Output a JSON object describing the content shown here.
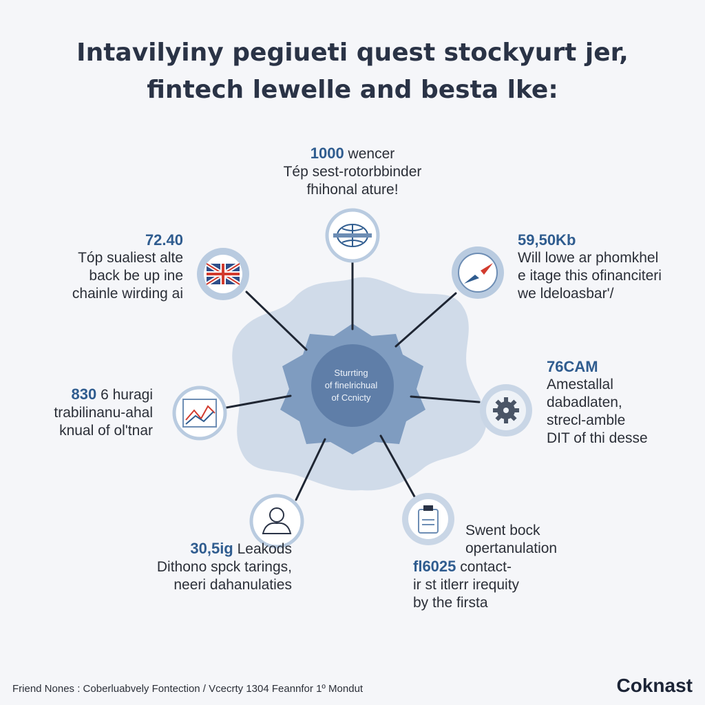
{
  "title": {
    "line1": "Intavilyiny pegiueti quest stockyurt jer,",
    "line2": "fintech lewelle and besta lke:"
  },
  "hub": {
    "lines": [
      "Sturrting",
      "of finelrichual",
      "of Ccnicty"
    ]
  },
  "nodes": [
    {
      "icon": "globe-icon",
      "number": "1000",
      "lines": [
        "wencer",
        "Tép sest-rotorbbinder",
        "fhihonal ature!"
      ]
    },
    {
      "icon": "compass-icon",
      "number": "59,50Kb",
      "lines": [
        "Will lowe ar phomkhel",
        "e itage this ofinanciteri",
        "we ldeloasbar'/"
      ]
    },
    {
      "icon": "gear-icon",
      "number": "76CAM",
      "lines": [
        "Amestallal",
        "dabadlaten,",
        "strecl-amble",
        "DIT of thi desse"
      ]
    },
    {
      "icon": "document-icon",
      "number": "fl6025",
      "lines": [
        "Swent bock",
        "opertanulation",
        "contact-",
        "ir st itlerr irequity",
        "by the firsta"
      ]
    },
    {
      "icon": "person-icon",
      "number": "30,5ig",
      "lines": [
        "Leakods",
        "Dithono spck tarings,",
        "neeri dahanulaties"
      ]
    },
    {
      "icon": "chart-icon",
      "number": "830",
      "lines": [
        "6 huragi",
        "trabilinanu-ahal",
        "knual of ol'tnar"
      ]
    },
    {
      "icon": "flag-icon",
      "number": "72.40",
      "lines": [
        "Tóp sualiest alte",
        "back be up ine",
        "chainle wirding ai"
      ]
    }
  ],
  "footer": "Friend Nones : Coberluabvely Fontection / Vcecrty 1304 Feannfor 1º Mondut",
  "brand": "Coknast",
  "colors": {
    "background": "#f5f6f9",
    "blob_outer": "#c9d6e6",
    "blob_inner": "#7f9cc0",
    "hub": "#5f7ea8",
    "accent": "#2f5c8f",
    "icon_ring": "#b9cbe0",
    "connector": "#1f2633"
  }
}
